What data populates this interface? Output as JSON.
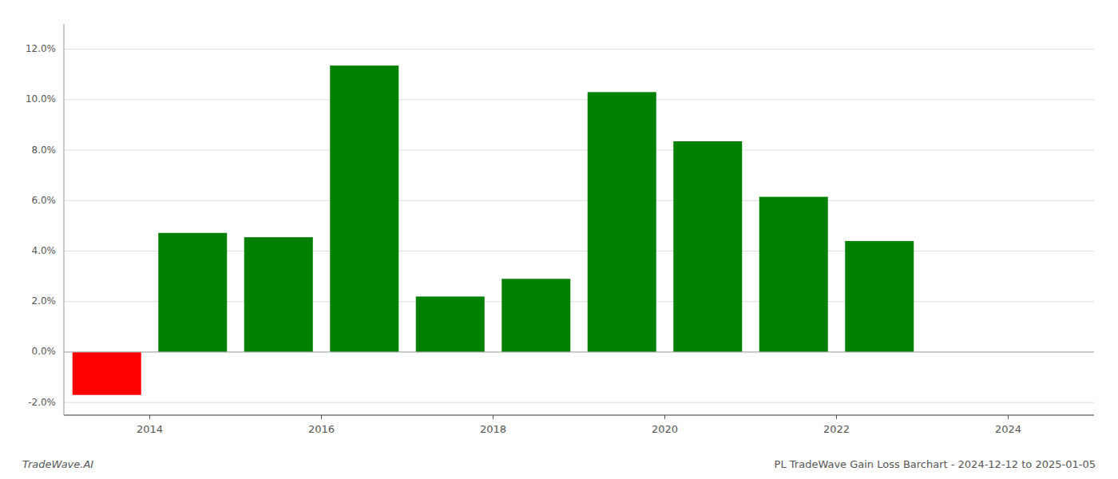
{
  "chart_data": {
    "type": "bar",
    "x": [
      2013.5,
      2014.5,
      2015.5,
      2016.5,
      2017.5,
      2018.5,
      2019.5,
      2020.5,
      2021.5,
      2022.5
    ],
    "values": [
      -1.7,
      4.72,
      4.55,
      11.35,
      2.2,
      2.9,
      10.3,
      8.35,
      6.15,
      4.4
    ],
    "colors": [
      "#ff0000",
      "#008000",
      "#008000",
      "#008000",
      "#008000",
      "#008000",
      "#008000",
      "#008000",
      "#008000",
      "#008000"
    ],
    "xlim": [
      2013.0,
      2025.0
    ],
    "ylim": [
      -2.5,
      13.0
    ],
    "xticks": [
      2014,
      2016,
      2018,
      2020,
      2022,
      2024
    ],
    "yticks": [
      {
        "value": -2.0,
        "label": "-2.0%"
      },
      {
        "value": 0.0,
        "label": "0.0%"
      },
      {
        "value": 2.0,
        "label": "2.0%"
      },
      {
        "value": 4.0,
        "label": "4.0%"
      },
      {
        "value": 6.0,
        "label": "6.0%"
      },
      {
        "value": 8.0,
        "label": "8.0%"
      },
      {
        "value": 10.0,
        "label": "10.0%"
      },
      {
        "value": 12.0,
        "label": "12.0%"
      }
    ],
    "grid": true,
    "annotations": [
      "TradeWave.AI",
      "PL TradeWave Gain Loss Barchart - 2024-12-12 to 2025-01-05"
    ]
  }
}
